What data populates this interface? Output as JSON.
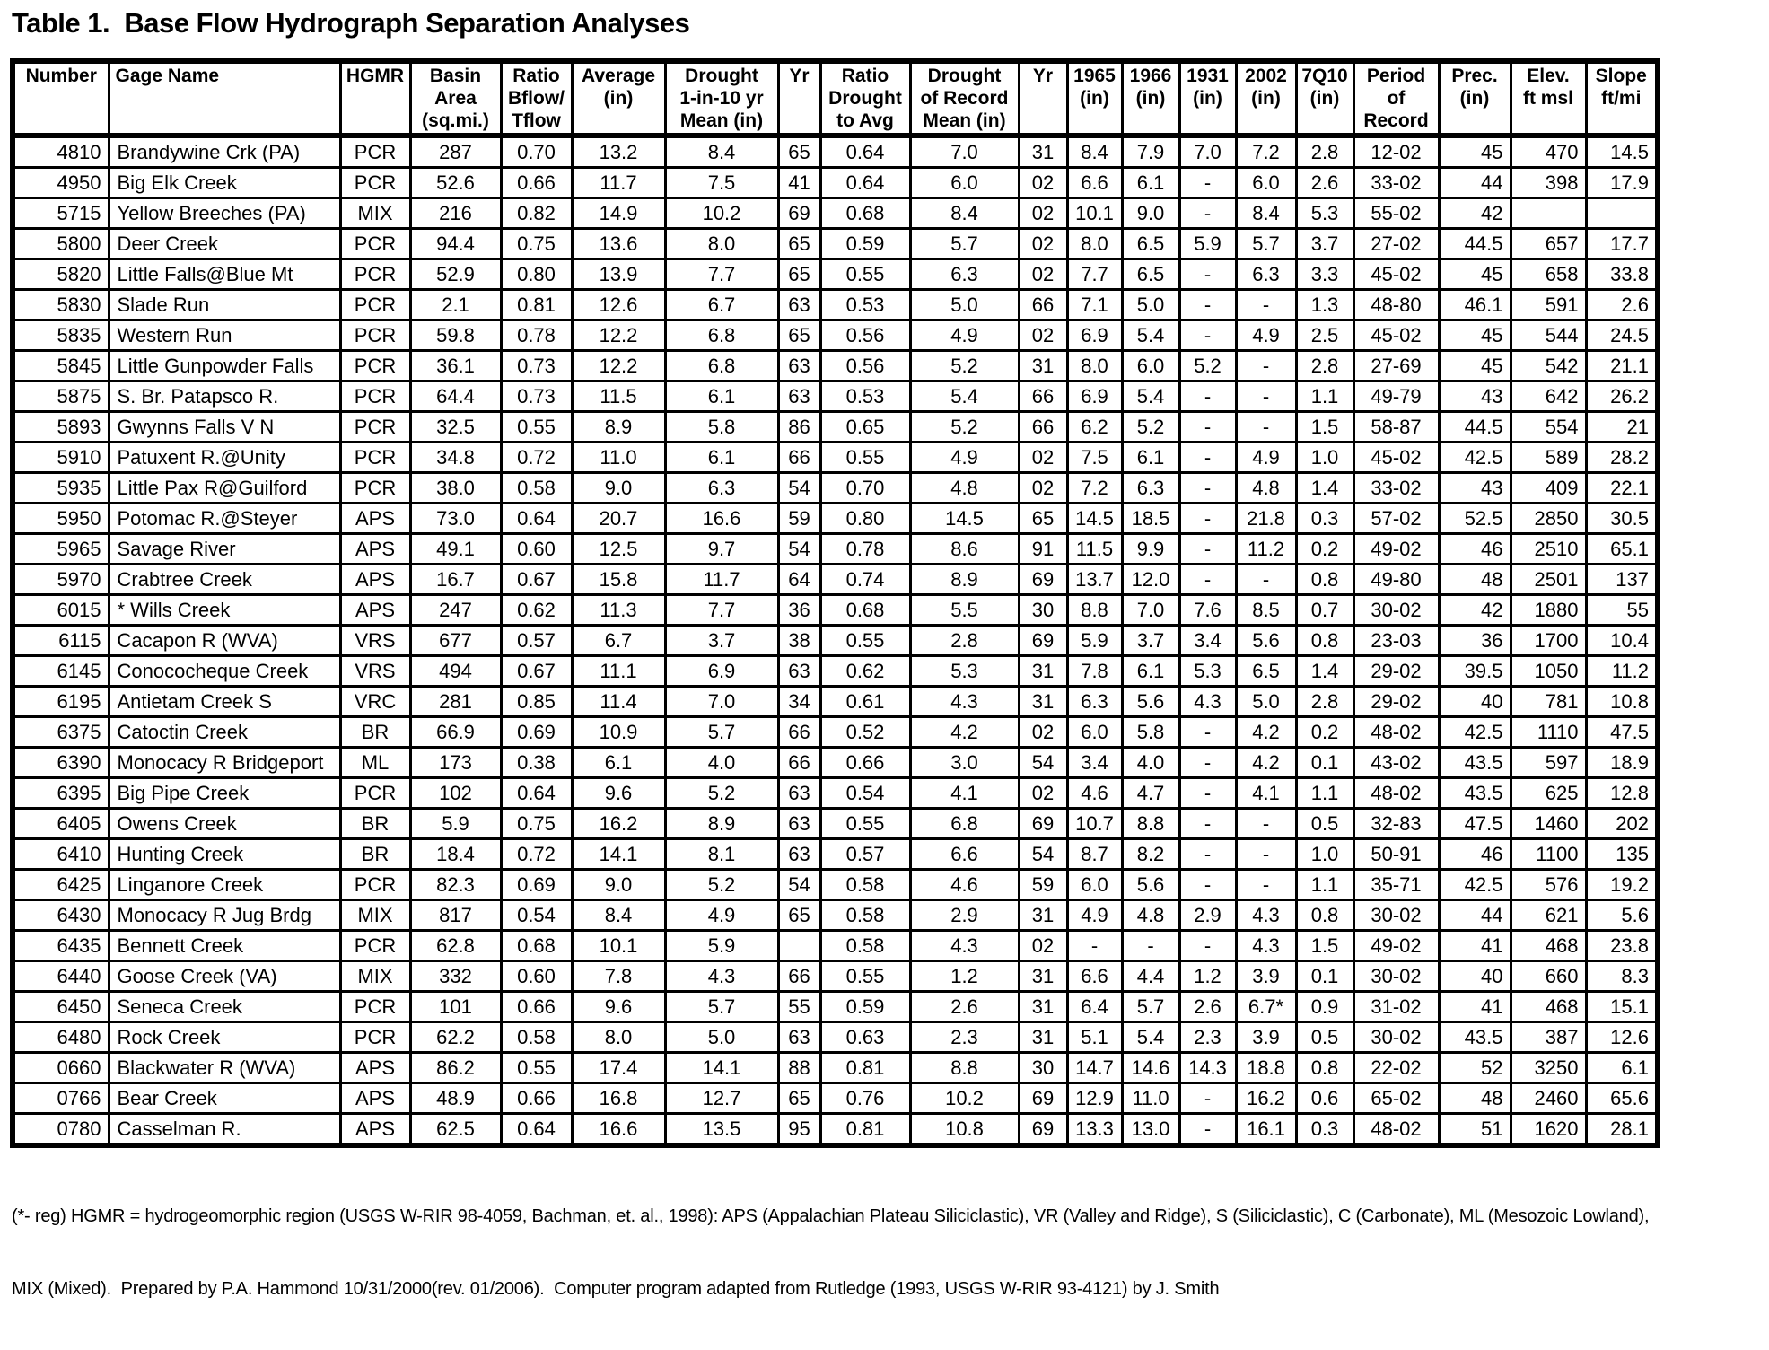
{
  "title": "Table 1.  Base Flow Hydrograph Separation Analyses",
  "table": {
    "columns": [
      {
        "id": "number",
        "lines": [
          "Number"
        ]
      },
      {
        "id": "gage_name",
        "lines": [
          "Gage Name"
        ]
      },
      {
        "id": "hgmr",
        "lines": [
          "HGMR"
        ]
      },
      {
        "id": "basin_area",
        "lines": [
          "Basin",
          "Area",
          "(sq.mi.)"
        ]
      },
      {
        "id": "ratio_bflow_tflow",
        "lines": [
          "Ratio",
          "Bflow/",
          "Tflow"
        ]
      },
      {
        "id": "average_in",
        "lines": [
          "Average",
          "(in)"
        ]
      },
      {
        "id": "drought_1in10",
        "lines": [
          "Drought",
          "1-in-10 yr",
          "Mean (in)"
        ]
      },
      {
        "id": "yr1",
        "lines": [
          "Yr"
        ]
      },
      {
        "id": "ratio_drought_to_avg",
        "lines": [
          "Ratio",
          "Drought",
          "to Avg"
        ]
      },
      {
        "id": "drought_of_record",
        "lines": [
          "Drought",
          "of Record",
          "Mean (in)"
        ]
      },
      {
        "id": "yr2",
        "lines": [
          "Yr"
        ]
      },
      {
        "id": "y1965",
        "lines": [
          "1965",
          "(in)"
        ]
      },
      {
        "id": "y1966",
        "lines": [
          "1966",
          "(in)"
        ]
      },
      {
        "id": "y1931",
        "lines": [
          "1931",
          "(in)"
        ]
      },
      {
        "id": "y2002",
        "lines": [
          "2002",
          "(in)"
        ]
      },
      {
        "id": "q7q10",
        "lines": [
          "7Q10",
          "(in)"
        ]
      },
      {
        "id": "period_of_record",
        "lines": [
          "Period",
          "of",
          "Record"
        ]
      },
      {
        "id": "prec",
        "lines": [
          "Prec.",
          "(in)"
        ]
      },
      {
        "id": "elev",
        "lines": [
          "Elev.",
          "ft msl"
        ]
      },
      {
        "id": "slope",
        "lines": [
          "Slope",
          "ft/mi"
        ]
      }
    ],
    "rows": [
      [
        "4810",
        "Brandywine Crk (PA)",
        "PCR",
        "287",
        "0.70",
        "13.2",
        "8.4",
        "65",
        "0.64",
        "7.0",
        "31",
        "8.4",
        "7.9",
        "7.0",
        "7.2",
        "2.8",
        "12-02",
        "45",
        "470",
        "14.5"
      ],
      [
        "4950",
        "Big Elk Creek",
        "PCR",
        "52.6",
        "0.66",
        "11.7",
        "7.5",
        "41",
        "0.64",
        "6.0",
        "02",
        "6.6",
        "6.1",
        "-",
        "6.0",
        "2.6",
        "33-02",
        "44",
        "398",
        "17.9"
      ],
      [
        "5715",
        "Yellow Breeches (PA)",
        "MIX",
        "216",
        "0.82",
        "14.9",
        "10.2",
        "69",
        "0.68",
        "8.4",
        "02",
        "10.1",
        "9.0",
        "-",
        "8.4",
        "5.3",
        "55-02",
        "42",
        "",
        ""
      ],
      [
        "5800",
        "Deer Creek",
        "PCR",
        "94.4",
        "0.75",
        "13.6",
        "8.0",
        "65",
        "0.59",
        "5.7",
        "02",
        "8.0",
        "6.5",
        "5.9",
        "5.7",
        "3.7",
        "27-02",
        "44.5",
        "657",
        "17.7"
      ],
      [
        "5820",
        "Little Falls@Blue Mt",
        "PCR",
        "52.9",
        "0.80",
        "13.9",
        "7.7",
        "65",
        "0.55",
        "6.3",
        "02",
        "7.7",
        "6.5",
        "-",
        "6.3",
        "3.3",
        "45-02",
        "45",
        "658",
        "33.8"
      ],
      [
        "5830",
        "Slade Run",
        "PCR",
        "2.1",
        "0.81",
        "12.6",
        "6.7",
        "63",
        "0.53",
        "5.0",
        "66",
        "7.1",
        "5.0",
        "-",
        "-",
        "1.3",
        "48-80",
        "46.1",
        "591",
        "2.6"
      ],
      [
        "5835",
        "Western Run",
        "PCR",
        "59.8",
        "0.78",
        "12.2",
        "6.8",
        "65",
        "0.56",
        "4.9",
        "02",
        "6.9",
        "5.4",
        "-",
        "4.9",
        "2.5",
        "45-02",
        "45",
        "544",
        "24.5"
      ],
      [
        "5845",
        "Little Gunpowder Falls",
        "PCR",
        "36.1",
        "0.73",
        "12.2",
        "6.8",
        "63",
        "0.56",
        "5.2",
        "31",
        "8.0",
        "6.0",
        "5.2",
        "-",
        "2.8",
        "27-69",
        "45",
        "542",
        "21.1"
      ],
      [
        "5875",
        "S. Br. Patapsco R.",
        "PCR",
        "64.4",
        "0.73",
        "11.5",
        "6.1",
        "63",
        "0.53",
        "5.4",
        "66",
        "6.9",
        "5.4",
        "-",
        "-",
        "1.1",
        "49-79",
        "43",
        "642",
        "26.2"
      ],
      [
        "5893",
        "Gwynns Falls V N",
        "PCR",
        "32.5",
        "0.55",
        "8.9",
        "5.8",
        "86",
        "0.65",
        "5.2",
        "66",
        "6.2",
        "5.2",
        "-",
        "-",
        "1.5",
        "58-87",
        "44.5",
        "554",
        "21"
      ],
      [
        "5910",
        "Patuxent R.@Unity",
        "PCR",
        "34.8",
        "0.72",
        "11.0",
        "6.1",
        "66",
        "0.55",
        "4.9",
        "02",
        "7.5",
        "6.1",
        "-",
        "4.9",
        "1.0",
        "45-02",
        "42.5",
        "589",
        "28.2"
      ],
      [
        "5935",
        "Little Pax R@Guilford",
        "PCR",
        "38.0",
        "0.58",
        "9.0",
        "6.3",
        "54",
        "0.70",
        "4.8",
        "02",
        "7.2",
        "6.3",
        "-",
        "4.8",
        "1.4",
        "33-02",
        "43",
        "409",
        "22.1"
      ],
      [
        "5950",
        "Potomac R.@Steyer",
        "APS",
        "73.0",
        "0.64",
        "20.7",
        "16.6",
        "59",
        "0.80",
        "14.5",
        "65",
        "14.5",
        "18.5",
        "-",
        "21.8",
        "0.3",
        "57-02",
        "52.5",
        "2850",
        "30.5"
      ],
      [
        "5965",
        "Savage River",
        "APS",
        "49.1",
        "0.60",
        "12.5",
        "9.7",
        "54",
        "0.78",
        "8.6",
        "91",
        "11.5",
        "9.9",
        "-",
        "11.2",
        "0.2",
        "49-02",
        "46",
        "2510",
        "65.1"
      ],
      [
        "5970",
        "Crabtree Creek",
        "APS",
        "16.7",
        "0.67",
        "15.8",
        "11.7",
        "64",
        "0.74",
        "8.9",
        "69",
        "13.7",
        "12.0",
        "-",
        "-",
        "0.8",
        "49-80",
        "48",
        "2501",
        "137"
      ],
      [
        "6015",
        "* Wills Creek",
        "APS",
        "247",
        "0.62",
        "11.3",
        "7.7",
        "36",
        "0.68",
        "5.5",
        "30",
        "8.8",
        "7.0",
        "7.6",
        "8.5",
        "0.7",
        "30-02",
        "42",
        "1880",
        "55"
      ],
      [
        "6115",
        "Cacapon R (WVA)",
        "VRS",
        "677",
        "0.57",
        "6.7",
        "3.7",
        "38",
        "0.55",
        "2.8",
        "69",
        "5.9",
        "3.7",
        "3.4",
        "5.6",
        "0.8",
        "23-03",
        "36",
        "1700",
        "10.4"
      ],
      [
        "6145",
        "Conococheque Creek",
        "VRS",
        "494",
        "0.67",
        "11.1",
        "6.9",
        "63",
        "0.62",
        "5.3",
        "31",
        "7.8",
        "6.1",
        "5.3",
        "6.5",
        "1.4",
        "29-02",
        "39.5",
        "1050",
        "11.2"
      ],
      [
        "6195",
        "Antietam Creek S",
        "VRC",
        "281",
        "0.85",
        "11.4",
        "7.0",
        "34",
        "0.61",
        "4.3",
        "31",
        "6.3",
        "5.6",
        "4.3",
        "5.0",
        "2.8",
        "29-02",
        "40",
        "781",
        "10.8"
      ],
      [
        "6375",
        "Catoctin Creek",
        "BR",
        "66.9",
        "0.69",
        "10.9",
        "5.7",
        "66",
        "0.52",
        "4.2",
        "02",
        "6.0",
        "5.8",
        "-",
        "4.2",
        "0.2",
        "48-02",
        "42.5",
        "1110",
        "47.5"
      ],
      [
        "6390",
        "Monocacy R Bridgeport",
        "ML",
        "173",
        "0.38",
        "6.1",
        "4.0",
        "66",
        "0.66",
        "3.0",
        "54",
        "3.4",
        "4.0",
        "-",
        "4.2",
        "0.1",
        "43-02",
        "43.5",
        "597",
        "18.9"
      ],
      [
        "6395",
        "Big Pipe Creek",
        "PCR",
        "102",
        "0.64",
        "9.6",
        "5.2",
        "63",
        "0.54",
        "4.1",
        "02",
        "4.6",
        "4.7",
        "-",
        "4.1",
        "1.1",
        "48-02",
        "43.5",
        "625",
        "12.8"
      ],
      [
        "6405",
        "Owens Creek",
        "BR",
        "5.9",
        "0.75",
        "16.2",
        "8.9",
        "63",
        "0.55",
        "6.8",
        "69",
        "10.7",
        "8.8",
        "-",
        "-",
        "0.5",
        "32-83",
        "47.5",
        "1460",
        "202"
      ],
      [
        "6410",
        "Hunting Creek",
        "BR",
        "18.4",
        "0.72",
        "14.1",
        "8.1",
        "63",
        "0.57",
        "6.6",
        "54",
        "8.7",
        "8.2",
        "-",
        "-",
        "1.0",
        "50-91",
        "46",
        "1100",
        "135"
      ],
      [
        "6425",
        "Linganore Creek",
        "PCR",
        "82.3",
        "0.69",
        "9.0",
        "5.2",
        "54",
        "0.58",
        "4.6",
        "59",
        "6.0",
        "5.6",
        "-",
        "-",
        "1.1",
        "35-71",
        "42.5",
        "576",
        "19.2"
      ],
      [
        "6430",
        "Monocacy R Jug Brdg",
        "MIX",
        "817",
        "0.54",
        "8.4",
        "4.9",
        "65",
        "0.58",
        "2.9",
        "31",
        "4.9",
        "4.8",
        "2.9",
        "4.3",
        "0.8",
        "30-02",
        "44",
        "621",
        "5.6"
      ],
      [
        "6435",
        "Bennett Creek",
        "PCR",
        "62.8",
        "0.68",
        "10.1",
        "5.9",
        "",
        "0.58",
        "4.3",
        "02",
        "-",
        "-",
        "-",
        "4.3",
        "1.5",
        "49-02",
        "41",
        "468",
        "23.8"
      ],
      [
        "6440",
        "Goose Creek (VA)",
        "MIX",
        "332",
        "0.60",
        "7.8",
        "4.3",
        "66",
        "0.55",
        "1.2",
        "31",
        "6.6",
        "4.4",
        "1.2",
        "3.9",
        "0.1",
        "30-02",
        "40",
        "660",
        "8.3"
      ],
      [
        "6450",
        "Seneca Creek",
        "PCR",
        "101",
        "0.66",
        "9.6",
        "5.7",
        "55",
        "0.59",
        "2.6",
        "31",
        "6.4",
        "5.7",
        "2.6",
        "6.7*",
        "0.9",
        "31-02",
        "41",
        "468",
        "15.1"
      ],
      [
        "6480",
        "Rock Creek",
        "PCR",
        "62.2",
        "0.58",
        "8.0",
        "5.0",
        "63",
        "0.63",
        "2.3",
        "31",
        "5.1",
        "5.4",
        "2.3",
        "3.9",
        "0.5",
        "30-02",
        "43.5",
        "387",
        "12.6"
      ],
      [
        "0660",
        "Blackwater R (WVA)",
        "APS",
        "86.2",
        "0.55",
        "17.4",
        "14.1",
        "88",
        "0.81",
        "8.8",
        "30",
        "14.7",
        "14.6",
        "14.3",
        "18.8",
        "0.8",
        "22-02",
        "52",
        "3250",
        "6.1"
      ],
      [
        "0766",
        "Bear Creek",
        "APS",
        "48.9",
        "0.66",
        "16.8",
        "12.7",
        "65",
        "0.76",
        "10.2",
        "69",
        "12.9",
        "11.0",
        "-",
        "16.2",
        "0.6",
        "65-02",
        "48",
        "2460",
        "65.6"
      ],
      [
        "0780",
        "Casselman R.",
        "APS",
        "62.5",
        "0.64",
        "16.6",
        "13.5",
        "95",
        "0.81",
        "10.8",
        "69",
        "13.3",
        "13.0",
        "-",
        "16.1",
        "0.3",
        "48-02",
        "51",
        "1620",
        "28.1"
      ]
    ]
  },
  "footnote": {
    "line1": "(*- reg) HGMR = hydrogeomorphic region (USGS W-RIR 98-4059, Bachman, et. al., 1998): APS (Appalachian Plateau Siliciclastic), VR (Valley and Ridge), S (Siliciclastic), C (Carbonate), ML (Mesozoic Lowland),",
    "line2": "MIX (Mixed).  Prepared by P.A. Hammond 10/31/2000(rev. 01/2006).  Computer program adapted from Rutledge (1993, USGS W-RIR 93-4121) by J. Smith"
  }
}
